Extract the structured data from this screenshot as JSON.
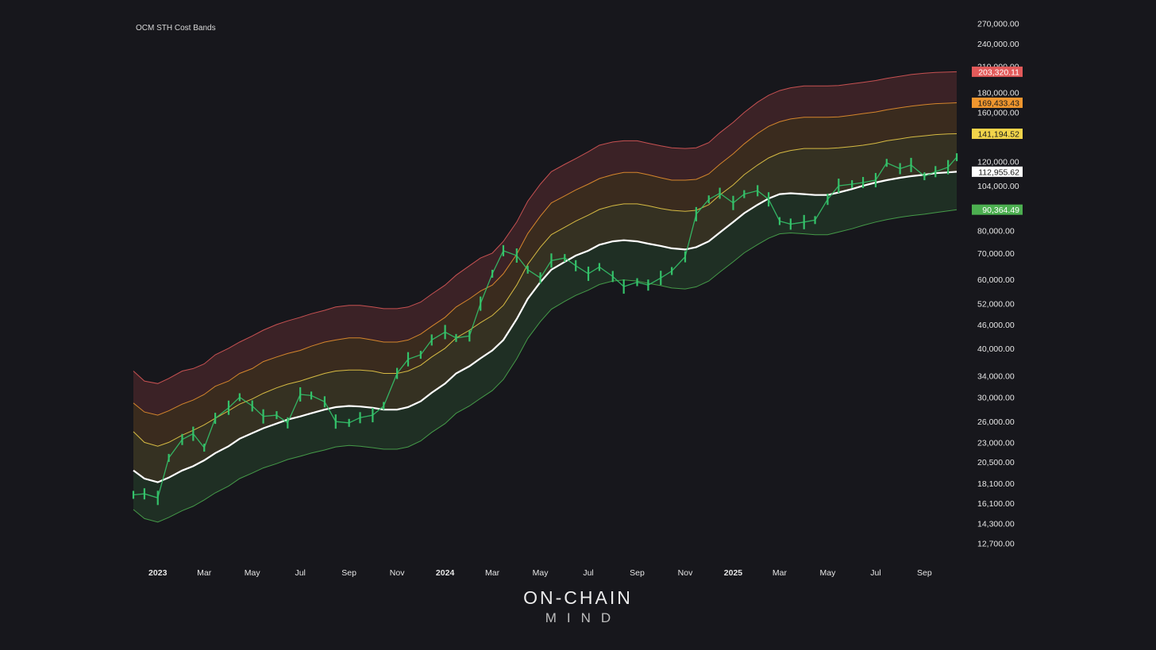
{
  "colors": {
    "background": "#17171c",
    "band_top": "#e35a5a",
    "band_upper": "#f0962e",
    "band_mid": "#f2d44a",
    "cost_basis": "#ffffff",
    "band_low": "#4caf50",
    "price": "#34c26a"
  },
  "chart_data": {
    "type": "line",
    "title": "OCM STH Cost Bands",
    "xlabel": "",
    "ylabel": "",
    "y_scale": "log",
    "ylim": [
      11500,
      285000
    ],
    "x_range": [
      "2022-12-01",
      "2025-10-15"
    ],
    "y_ticks": [
      "270,000.00",
      "240,000.00",
      "210,000.00",
      "180,000.00",
      "160,000.00",
      "120,000.00",
      "104,000.00",
      "90,000.00",
      "80,000.00",
      "70,000.00",
      "60,000.00",
      "52,000.00",
      "46,000.00",
      "40,000.00",
      "34,000.00",
      "30,000.00",
      "26,000.00",
      "23,000.00",
      "20,500.00",
      "18,100.00",
      "16,100.00",
      "14,300.00",
      "12,700.00"
    ],
    "y_tick_values": [
      270000,
      240000,
      210000,
      180000,
      160000,
      120000,
      104000,
      90000,
      80000,
      70000,
      60000,
      52000,
      46000,
      40000,
      34000,
      30000,
      26000,
      23000,
      20500,
      18100,
      16100,
      14300,
      12700
    ],
    "x_ticks": [
      {
        "label": "2023",
        "date": "2023-01-01",
        "major": true
      },
      {
        "label": "Mar",
        "date": "2023-03-01",
        "major": false
      },
      {
        "label": "May",
        "date": "2023-05-01",
        "major": false
      },
      {
        "label": "Jul",
        "date": "2023-07-01",
        "major": false
      },
      {
        "label": "Sep",
        "date": "2023-09-01",
        "major": false
      },
      {
        "label": "Nov",
        "date": "2023-11-01",
        "major": false
      },
      {
        "label": "2024",
        "date": "2024-01-01",
        "major": true
      },
      {
        "label": "Mar",
        "date": "2024-03-01",
        "major": false
      },
      {
        "label": "May",
        "date": "2024-05-01",
        "major": false
      },
      {
        "label": "Jul",
        "date": "2024-07-01",
        "major": false
      },
      {
        "label": "Sep",
        "date": "2024-09-01",
        "major": false
      },
      {
        "label": "Nov",
        "date": "2024-11-01",
        "major": false
      },
      {
        "label": "2025",
        "date": "2025-01-01",
        "major": true
      },
      {
        "label": "Mar",
        "date": "2025-03-01",
        "major": false
      },
      {
        "label": "May",
        "date": "2025-05-01",
        "major": false
      },
      {
        "label": "Jul",
        "date": "2025-07-01",
        "major": false
      },
      {
        "label": "Sep",
        "date": "2025-09-01",
        "major": false
      }
    ],
    "dates": [
      "2022-12-01",
      "2022-12-15",
      "2023-01-01",
      "2023-01-15",
      "2023-02-01",
      "2023-02-15",
      "2023-03-01",
      "2023-03-15",
      "2023-04-01",
      "2023-04-15",
      "2023-05-01",
      "2023-05-15",
      "2023-06-01",
      "2023-06-15",
      "2023-07-01",
      "2023-07-15",
      "2023-08-01",
      "2023-08-15",
      "2023-09-01",
      "2023-09-15",
      "2023-10-01",
      "2023-10-15",
      "2023-11-01",
      "2023-11-15",
      "2023-12-01",
      "2023-12-15",
      "2024-01-01",
      "2024-01-15",
      "2024-02-01",
      "2024-02-15",
      "2024-03-01",
      "2024-03-15",
      "2024-04-01",
      "2024-04-15",
      "2024-05-01",
      "2024-05-15",
      "2024-06-01",
      "2024-06-15",
      "2024-07-01",
      "2024-07-15",
      "2024-08-01",
      "2024-08-15",
      "2024-09-01",
      "2024-09-15",
      "2024-10-01",
      "2024-10-15",
      "2024-11-01",
      "2024-11-15",
      "2024-12-01",
      "2024-12-15",
      "2025-01-01",
      "2025-01-15",
      "2025-02-01",
      "2025-02-15",
      "2025-03-01",
      "2025-03-15",
      "2025-04-01",
      "2025-04-15",
      "2025-05-01",
      "2025-05-15",
      "2025-06-01",
      "2025-06-15",
      "2025-07-01",
      "2025-07-15",
      "2025-08-01",
      "2025-08-15",
      "2025-09-01",
      "2025-09-15",
      "2025-10-01",
      "2025-10-12"
    ],
    "series": [
      {
        "key": "top",
        "color_key": "band_top",
        "width": 1,
        "values": [
          35000,
          33000,
          32500,
          33500,
          35000,
          35500,
          36500,
          38500,
          40000,
          41500,
          43000,
          44500,
          46000,
          47000,
          48000,
          49000,
          50000,
          51000,
          51500,
          51500,
          51000,
          50500,
          50500,
          51000,
          52500,
          55000,
          58000,
          61500,
          65000,
          68000,
          70000,
          75000,
          84000,
          95000,
          105000,
          113000,
          118000,
          122000,
          127000,
          132000,
          134500,
          135500,
          135500,
          133500,
          131500,
          130000,
          129500,
          130000,
          134000,
          142000,
          151000,
          160000,
          170000,
          177000,
          182000,
          185000,
          187000,
          187000,
          187000,
          187500,
          189500,
          191000,
          193000,
          195500,
          198000,
          200000,
          201500,
          202500,
          203000,
          203320
        ]
      },
      {
        "key": "upper",
        "color_key": "band_upper",
        "width": 1,
        "values": [
          29000,
          27500,
          27000,
          27700,
          28800,
          29500,
          30500,
          32000,
          33000,
          34500,
          35500,
          37000,
          38000,
          38800,
          39500,
          40500,
          41500,
          42000,
          42500,
          42500,
          42000,
          41500,
          41500,
          42000,
          43500,
          45500,
          48000,
          51000,
          53500,
          56000,
          58000,
          62000,
          69500,
          78500,
          87000,
          94000,
          98000,
          101500,
          105000,
          108500,
          111000,
          112500,
          112500,
          111000,
          109000,
          107500,
          107500,
          108000,
          111500,
          118000,
          125500,
          133000,
          141500,
          147500,
          151500,
          154000,
          155500,
          155500,
          155500,
          156000,
          157500,
          159000,
          160500,
          162500,
          164500,
          166000,
          167500,
          168500,
          169000,
          169433
        ]
      },
      {
        "key": "mid",
        "color_key": "band_mid",
        "width": 1,
        "values": [
          24500,
          23000,
          22500,
          23000,
          24000,
          24700,
          25500,
          26500,
          27700,
          28800,
          29700,
          30700,
          31700,
          32400,
          33000,
          33700,
          34500,
          35000,
          35200,
          35200,
          35000,
          34500,
          34500,
          35000,
          36200,
          38000,
          40000,
          42500,
          44500,
          46500,
          48500,
          51500,
          58000,
          65500,
          72500,
          78000,
          81500,
          84500,
          87500,
          90500,
          92500,
          93500,
          93500,
          92500,
          91000,
          90000,
          89500,
          90000,
          93000,
          98500,
          104500,
          111000,
          117500,
          122500,
          126000,
          128000,
          129500,
          129500,
          129500,
          130000,
          131000,
          132000,
          133500,
          135500,
          137000,
          138500,
          139500,
          140500,
          141000,
          141194
        ]
      },
      {
        "key": "cost",
        "color_key": "cost_basis",
        "width": 2.2,
        "values": [
          19500,
          18600,
          18200,
          18700,
          19500,
          20000,
          20700,
          21600,
          22500,
          23500,
          24300,
          25000,
          25700,
          26300,
          26800,
          27300,
          27900,
          28300,
          28500,
          28400,
          28200,
          27900,
          27900,
          28300,
          29300,
          30800,
          32500,
          34500,
          36000,
          37700,
          39500,
          42000,
          47500,
          53500,
          59000,
          63500,
          66500,
          69000,
          71000,
          73500,
          75000,
          75500,
          75000,
          74000,
          73000,
          72000,
          71500,
          72500,
          75000,
          79000,
          84000,
          88500,
          93000,
          96500,
          99000,
          99500,
          99000,
          98500,
          98500,
          100000,
          102000,
          104000,
          106000,
          107500,
          109000,
          110000,
          111000,
          112000,
          112500,
          112956
        ]
      },
      {
        "key": "low",
        "color_key": "band_low",
        "width": 1,
        "values": [
          15500,
          14700,
          14400,
          14800,
          15400,
          15800,
          16400,
          17100,
          17800,
          18600,
          19200,
          19800,
          20300,
          20800,
          21200,
          21600,
          22000,
          22400,
          22600,
          22500,
          22300,
          22100,
          22100,
          22400,
          23200,
          24400,
          25700,
          27300,
          28500,
          29800,
          31200,
          33300,
          37600,
          42400,
          46800,
          50300,
          52700,
          54600,
          56300,
          58200,
          59400,
          59800,
          59400,
          58600,
          57800,
          57000,
          56700,
          57400,
          59400,
          62600,
          66500,
          70100,
          73600,
          76400,
          78400,
          78800,
          78400,
          78000,
          78000,
          79200,
          80800,
          82400,
          84000,
          85200,
          86400,
          87200,
          88000,
          88800,
          89700,
          90364
        ]
      },
      {
        "key": "price",
        "color_key": "price",
        "width": 1.3,
        "style": "candles",
        "values": [
          16900,
          17000,
          16600,
          21000,
          23400,
          24200,
          22300,
          26500,
          28200,
          30000,
          28500,
          26800,
          27000,
          25800,
          30500,
          30300,
          29200,
          26000,
          25800,
          26600,
          27000,
          28500,
          34500,
          37500,
          38500,
          42000,
          44000,
          42500,
          43000,
          52000,
          62000,
          71000,
          69000,
          63500,
          60500,
          67000,
          68000,
          65000,
          62000,
          64500,
          61000,
          57500,
          59000,
          58000,
          60500,
          63000,
          68500,
          88000,
          96000,
          99500,
          94000,
          99000,
          101000,
          96000,
          84500,
          83000,
          84000,
          85000,
          96000,
          104000,
          105000,
          106000,
          107500,
          119000,
          115000,
          117500,
          110000,
          113000,
          116000,
          123000
        ]
      }
    ],
    "value_tags": [
      {
        "text": "203,320.11",
        "value": 203320.11,
        "bg": "#e35a5a",
        "fg": "#ffffff"
      },
      {
        "text": "169,433.43",
        "value": 169433.43,
        "bg": "#f0962e",
        "fg": "#1a1a1a"
      },
      {
        "text": "141,194.52",
        "value": 141194.52,
        "bg": "#f2d44a",
        "fg": "#1a1a1a"
      },
      {
        "text": "112,955.62",
        "value": 112955.62,
        "bg": "#ffffff",
        "fg": "#1a1a1a"
      },
      {
        "text": "90,364.49",
        "value": 90364.49,
        "bg": "#4caf50",
        "fg": "#ffffff"
      }
    ]
  },
  "brand": {
    "line1": "ON-CHAIN",
    "line2": "MIND"
  }
}
